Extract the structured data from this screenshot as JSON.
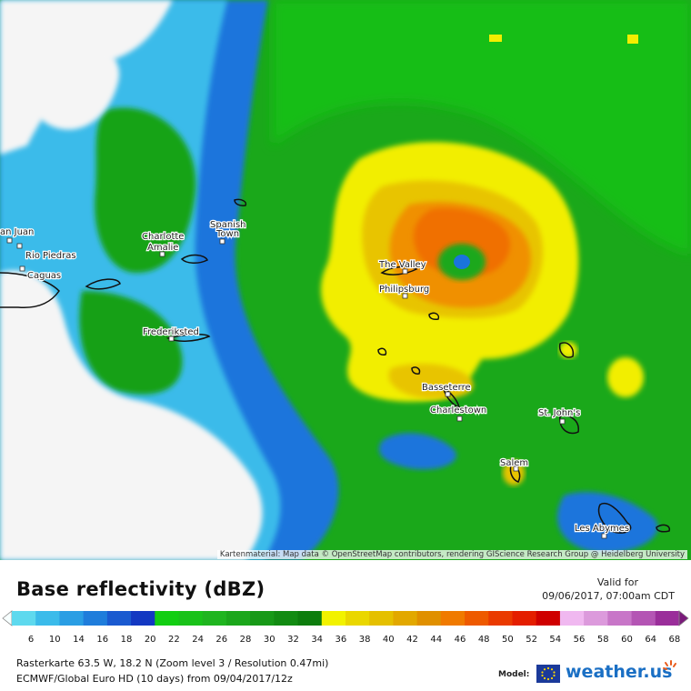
{
  "map": {
    "attribution": "Kartenmaterial: Map data © OpenStreetMap contributors, rendering GIScience Research Group @ Heidelberg University",
    "places": [
      {
        "name": "an Juan"
      },
      {
        "name": "Rio Piedras"
      },
      {
        "name": "Caguas"
      },
      {
        "name": "Charlotte"
      },
      {
        "name": "Amalie"
      },
      {
        "name": "Spanish"
      },
      {
        "name": "Town"
      },
      {
        "name": "Frederiksted"
      },
      {
        "name": "The Valley"
      },
      {
        "name": "Philipsburg"
      },
      {
        "name": "Basseterre"
      },
      {
        "name": "Charlestown"
      },
      {
        "name": "St. John's"
      },
      {
        "name": "Salem"
      },
      {
        "name": "Les Abymes"
      }
    ]
  },
  "legend": {
    "title": "Base reflectivity (dBZ)",
    "valid_for": "Valid for",
    "valid_time": "09/06/2017, 07:00am CDT",
    "ticks": [
      "6",
      "10",
      "14",
      "16",
      "18",
      "20",
      "22",
      "24",
      "26",
      "28",
      "30",
      "32",
      "34",
      "36",
      "38",
      "40",
      "42",
      "44",
      "46",
      "48",
      "50",
      "52",
      "54",
      "56",
      "58",
      "60",
      "64",
      "68"
    ],
    "colors": [
      "#5ed9ee",
      "#3bbbea",
      "#2a9ee4",
      "#1f7ddb",
      "#1a5ad0",
      "#1338c2",
      "#12ce12",
      "#19c219",
      "#1fb51f",
      "#1ba71b",
      "#179917",
      "#128b12",
      "#0d7d0d",
      "#f2f200",
      "#ead700",
      "#e5c000",
      "#e2a800",
      "#e09000",
      "#f07a00",
      "#ee5a00",
      "#ea3a00",
      "#e41e00",
      "#cf0000",
      "#f0b8f0",
      "#dc9adc",
      "#c876c8",
      "#b455b4",
      "#9a2e9a"
    ]
  },
  "info": {
    "line1": "Rasterkarte 63.5 W, 18.2 N (Zoom level 3 / Resolution 0.47mi)",
    "line2": "ECMWF/Global Euro HD (10 days) from 09/04/2017/12z"
  },
  "brand": {
    "model_label": "Model:",
    "name": "weather.us"
  }
}
